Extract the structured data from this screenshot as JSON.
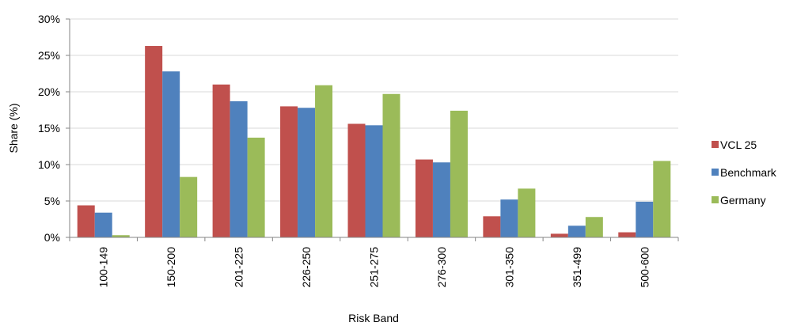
{
  "chart_data": {
    "type": "bar",
    "title": "",
    "xlabel": "Risk Band",
    "ylabel": "Share (%)",
    "ylim": [
      0,
      30
    ],
    "yticks": [
      0,
      5,
      10,
      15,
      20,
      25,
      30
    ],
    "ytick_labels": [
      "0%",
      "5%",
      "10%",
      "15%",
      "20%",
      "25%",
      "30%"
    ],
    "grid": true,
    "legend_position": "right",
    "categories": [
      "100-149",
      "150-200",
      "201-225",
      "226-250",
      "251-275",
      "276-300",
      "301-350",
      "351-499",
      "500-600"
    ],
    "series": [
      {
        "name": "VCL 25",
        "color": "#c0504d",
        "values": [
          4.4,
          26.3,
          21.0,
          18.0,
          15.6,
          10.7,
          2.9,
          0.5,
          0.7
        ]
      },
      {
        "name": "Benchmark",
        "color": "#4f81bd",
        "values": [
          3.4,
          22.8,
          18.7,
          17.8,
          15.4,
          10.3,
          5.2,
          1.6,
          4.9
        ]
      },
      {
        "name": "Germany",
        "color": "#9bbb59",
        "values": [
          0.3,
          8.3,
          13.7,
          20.9,
          19.7,
          17.4,
          6.7,
          2.8,
          10.5
        ]
      }
    ]
  }
}
